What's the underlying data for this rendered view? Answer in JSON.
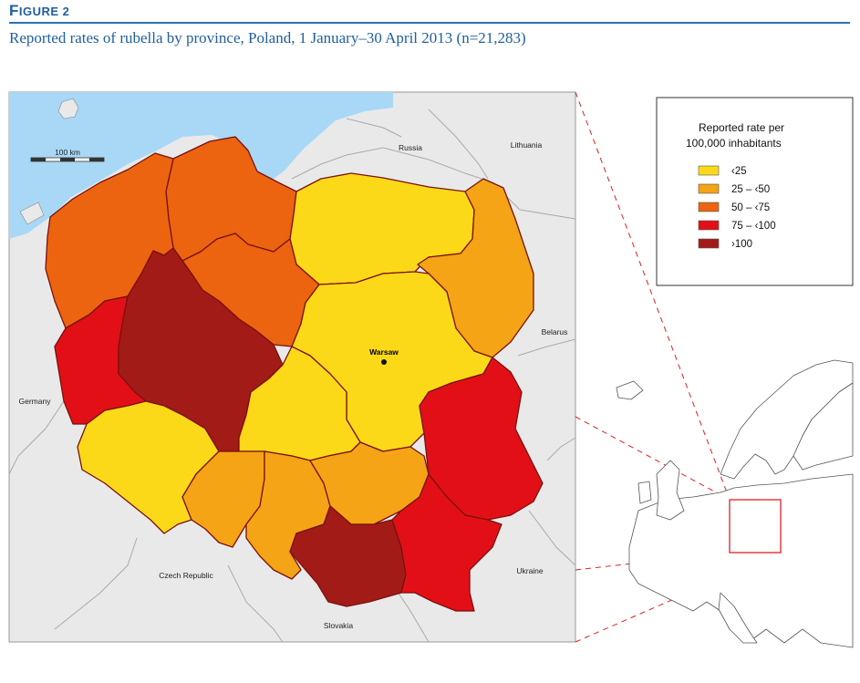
{
  "figure": {
    "label_first": "F",
    "label_rest": "IGURE 2",
    "title": "Reported rates of rubella by province, Poland, 1 January–30 April 2013 (n=21,283)"
  },
  "map": {
    "scale_label": "100 km",
    "capital": "Warsaw",
    "neighbours": [
      "Russia",
      "Lithuania",
      "Belarus",
      "Germany",
      "Czech Republic",
      "Slovakia",
      "Ukraine"
    ],
    "colors": {
      "sea": "#a8d8f5",
      "land": "#e9e9e9",
      "border": "#7a1010",
      "inset_box": "#e02020"
    }
  },
  "legend": {
    "title_line1": "Reported rate per",
    "title_line2": "100,000 inhabitants",
    "items": [
      {
        "label": "‹25",
        "color": "#fcd918"
      },
      {
        "label": "25 – ‹50",
        "color": "#f4a414"
      },
      {
        "label": "50 – ‹75",
        "color": "#ec640f"
      },
      {
        "label": "75 – ‹100",
        "color": "#e21016"
      },
      {
        "label": "›100",
        "color": "#a31b16"
      }
    ]
  }
}
